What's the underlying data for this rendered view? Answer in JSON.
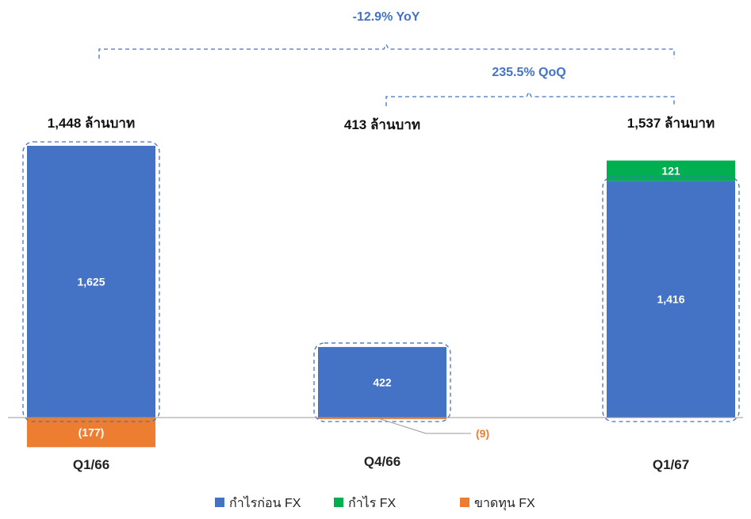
{
  "chart_data": {
    "type": "bar",
    "stacked": true,
    "categories": [
      "Q1/66",
      "Q4/66",
      "Q1/67"
    ],
    "series": [
      {
        "name": "กำไรก่อน FX",
        "color": "#4472C4",
        "values": [
          1625,
          422,
          1416
        ],
        "labels": [
          "1,625",
          "422",
          "1,416"
        ]
      },
      {
        "name": "กำไร FX",
        "color": "#00B050",
        "values": [
          0,
          0,
          121
        ],
        "labels": [
          "",
          "",
          "121"
        ]
      },
      {
        "name": "ขาดทุน FX",
        "color": "#ED7D31",
        "values": [
          -177,
          -9,
          0
        ],
        "labels": [
          "(177)",
          "(9)",
          ""
        ]
      }
    ],
    "totals": [
      "1,448 ล้านบาท",
      "413 ล้านบาท",
      "1,537 ล้านบาท"
    ],
    "comparisons": {
      "yoy": "-12.9% YoY",
      "qoq": "235.5% QoQ"
    },
    "legend_position": "bottom",
    "grid": false,
    "ylim": [
      -200,
      1700
    ],
    "colors": {
      "highlight_dash": "#4472C4",
      "comparison_text": "#4472C4",
      "loss_label": "#ED7D31",
      "axis": "#999999"
    }
  }
}
